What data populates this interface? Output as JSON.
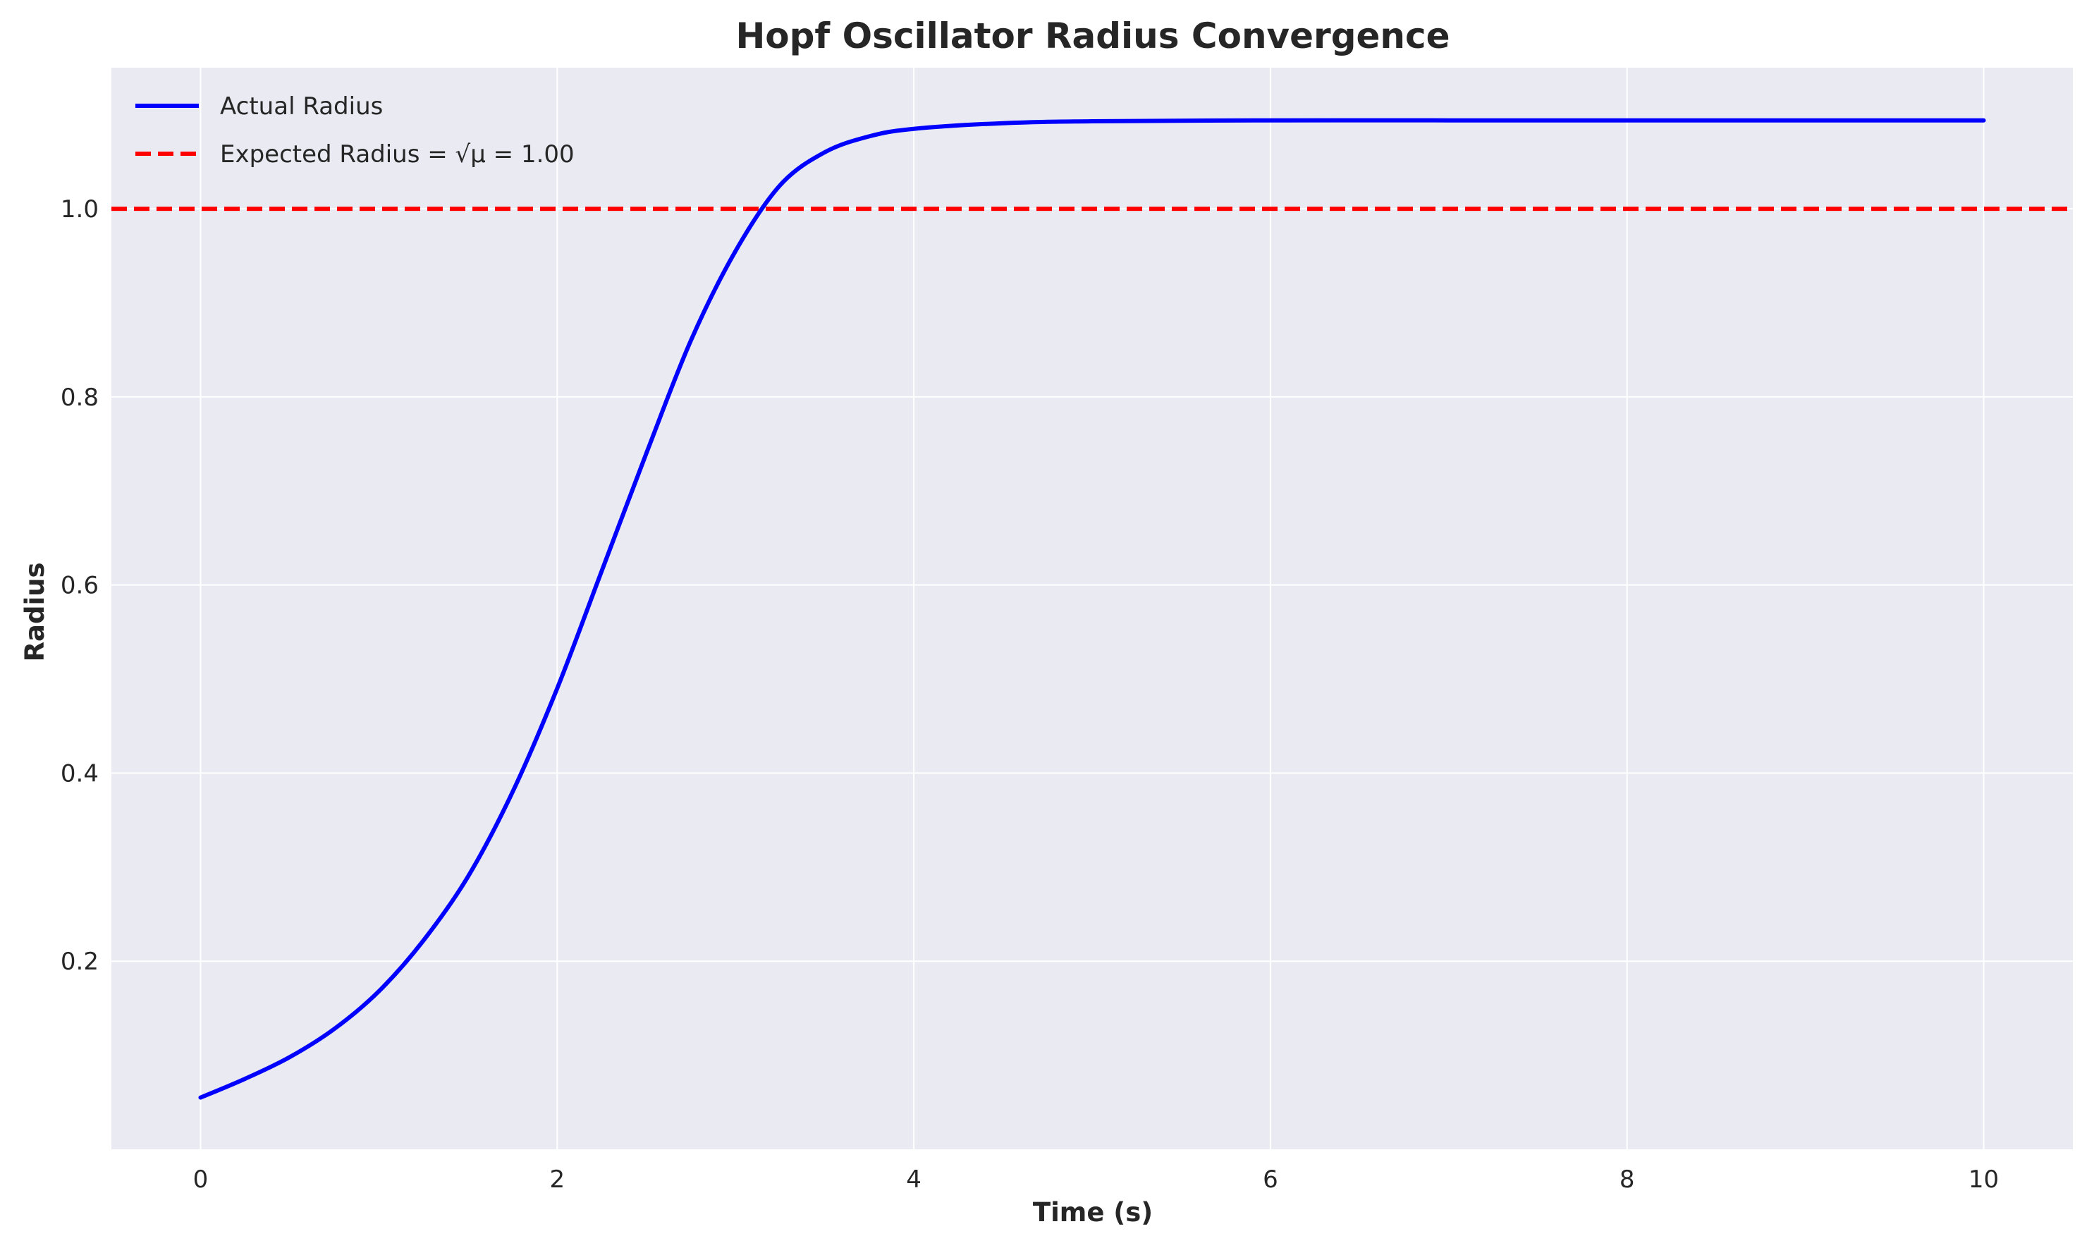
{
  "chart_data": {
    "type": "line",
    "title": "Hopf Oscillator Radius Convergence",
    "xlabel": "Time (s)",
    "ylabel": "Radius",
    "xlim": [
      -0.5,
      10.5
    ],
    "ylim": [
      0.0,
      1.15
    ],
    "xticks": [
      0,
      2,
      4,
      6,
      8,
      10
    ],
    "yticks": [
      0.2,
      0.4,
      0.6,
      0.8,
      1.0
    ],
    "xtick_labels": [
      "0",
      "2",
      "4",
      "6",
      "8",
      "10"
    ],
    "ytick_labels": [
      "0.2",
      "0.4",
      "0.6",
      "0.8",
      "1.0"
    ],
    "grid": true,
    "legend_position": "top-left",
    "series": [
      {
        "name": "Actual Radius",
        "color": "#0000ff",
        "style": "solid",
        "x": [
          0,
          0.25,
          0.5,
          0.75,
          1.0,
          1.25,
          1.5,
          1.75,
          2.0,
          2.25,
          2.5,
          2.75,
          3.0,
          3.25,
          3.5,
          3.75,
          4.0,
          4.5,
          5.0,
          6.0,
          7.0,
          8.0,
          9.0,
          10.0
        ],
        "y": [
          0.055,
          0.075,
          0.098,
          0.128,
          0.168,
          0.222,
          0.29,
          0.38,
          0.49,
          0.615,
          0.74,
          0.86,
          0.955,
          1.025,
          1.06,
          1.077,
          1.085,
          1.091,
          1.093,
          1.094,
          1.094,
          1.094,
          1.094,
          1.094
        ]
      }
    ],
    "reference_line": {
      "name": "Expected Radius = √μ = 1.00",
      "y": 1.0,
      "color": "#ff0000",
      "style": "dashed"
    }
  }
}
